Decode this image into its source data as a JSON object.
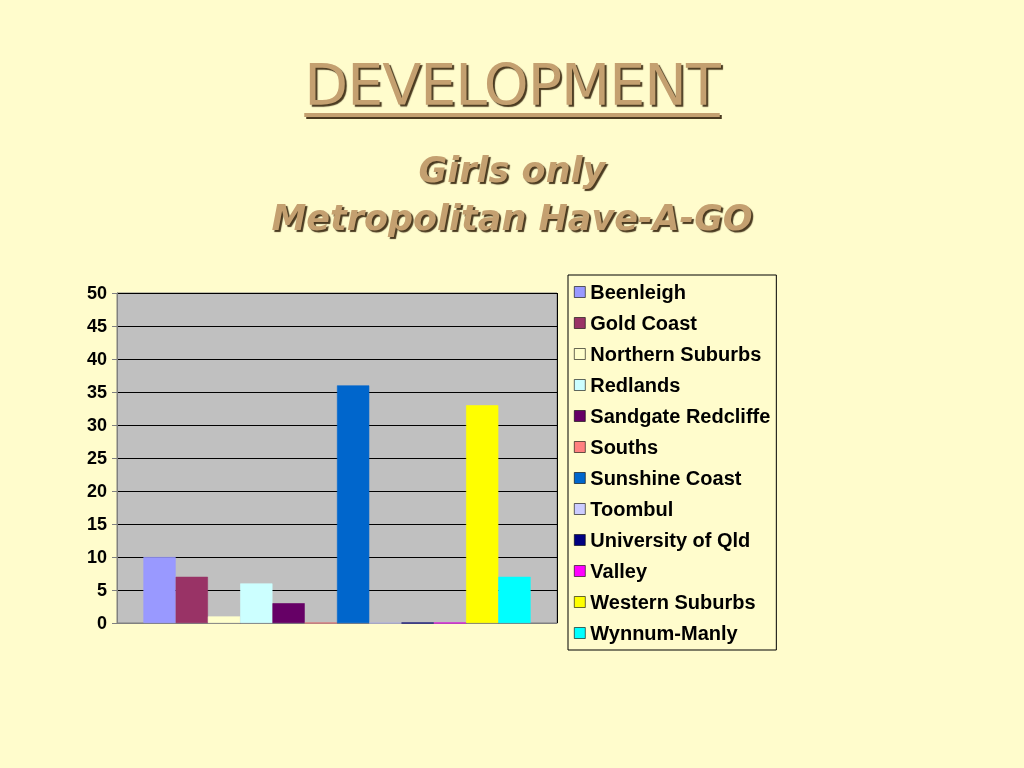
{
  "chart_data": {
    "type": "bar",
    "title": "DEVELOPMENT",
    "subtitle": "Girls only\nMetropolitan Have-A-GO",
    "categories": [
      null
    ],
    "series": [
      {
        "name": "Beenleigh",
        "color": "#9999ff",
        "values": [
          10
        ]
      },
      {
        "name": "Gold Coast",
        "color": "#993366",
        "values": [
          7
        ]
      },
      {
        "name": "Northern Suburbs",
        "color": "#ffffcc",
        "values": [
          1
        ]
      },
      {
        "name": "Redlands",
        "color": "#ccffff",
        "values": [
          6
        ]
      },
      {
        "name": "Sandgate Redcliffe",
        "color": "#660066",
        "values": [
          3
        ]
      },
      {
        "name": "Souths",
        "color": "#ff8080",
        "values": [
          0
        ]
      },
      {
        "name": "Sunshine Coast",
        "color": "#0066cc",
        "values": [
          36
        ]
      },
      {
        "name": "Toombul",
        "color": "#ccccff",
        "values": [
          0
        ]
      },
      {
        "name": "University of Qld",
        "color": "#000080",
        "values": [
          0
        ]
      },
      {
        "name": "Valley",
        "color": "#ff00ff",
        "values": [
          0
        ]
      },
      {
        "name": "Western Suburbs",
        "color": "#ffff00",
        "values": [
          33
        ]
      },
      {
        "name": "Wynnum-Manly",
        "color": "#00ffff",
        "values": [
          7
        ]
      }
    ],
    "ylim": [
      0,
      50
    ],
    "yticks": [
      0,
      5,
      10,
      15,
      20,
      25,
      30,
      35,
      40,
      45,
      50
    ],
    "grid": true,
    "legend": "right"
  }
}
